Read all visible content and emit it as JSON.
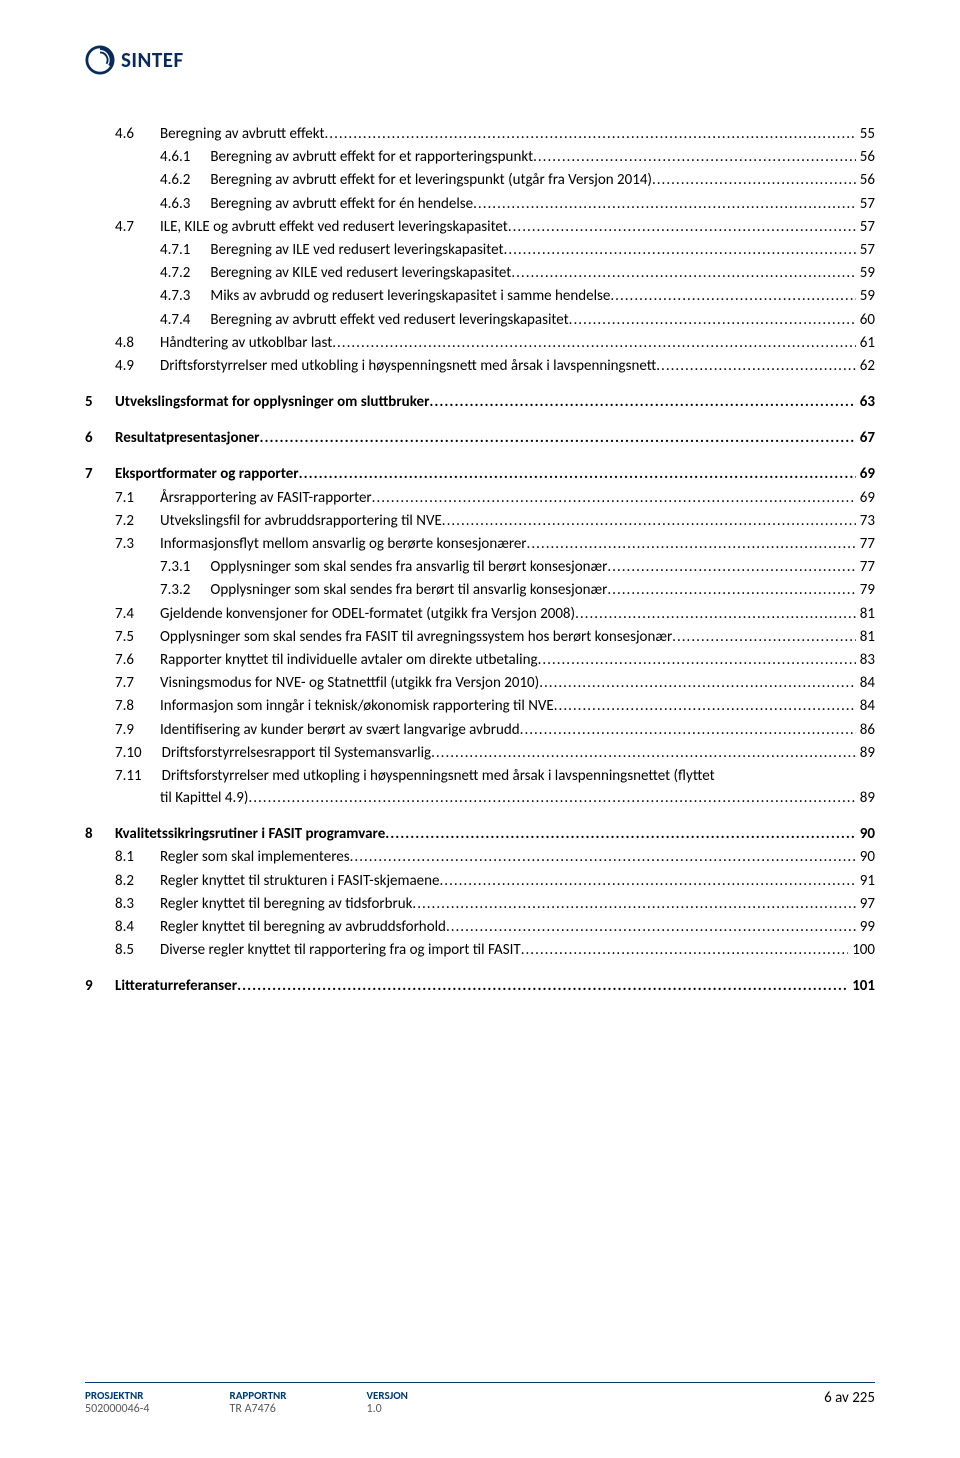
{
  "brand": {
    "name": "SINTEF"
  },
  "toc": [
    {
      "level": 2,
      "num": "4.6",
      "title": "Beregning av avbrutt effekt",
      "page": "55"
    },
    {
      "level": 3,
      "num": "4.6.1",
      "title": "Beregning av avbrutt effekt for et rapporteringspunkt",
      "page": "56"
    },
    {
      "level": 3,
      "num": "4.6.2",
      "title": "Beregning av avbrutt effekt for et leveringspunkt (utgår fra Versjon 2014)",
      "page": "56"
    },
    {
      "level": 3,
      "num": "4.6.3",
      "title": "Beregning av avbrutt effekt for én hendelse",
      "page": "57"
    },
    {
      "level": 2,
      "num": "4.7",
      "title": "ILE, KILE og avbrutt effekt ved redusert leveringskapasitet",
      "page": "57"
    },
    {
      "level": 3,
      "num": "4.7.1",
      "title": "Beregning av ILE ved redusert leveringskapasitet",
      "page": "57"
    },
    {
      "level": 3,
      "num": "4.7.2",
      "title": "Beregning av KILE ved redusert leveringskapasitet",
      "page": "59"
    },
    {
      "level": 3,
      "num": "4.7.3",
      "title": "Miks av avbrudd og redusert leveringskapasitet i samme hendelse",
      "page": "59"
    },
    {
      "level": 3,
      "num": "4.7.4",
      "title": "Beregning av avbrutt effekt ved redusert leveringskapasitet",
      "page": "60"
    },
    {
      "level": 2,
      "num": "4.8",
      "title": "Håndtering av utkoblbar last",
      "page": "61"
    },
    {
      "level": 2,
      "num": "4.9",
      "title": "Driftsforstyrrelser med utkobling i høyspenningsnett med årsak i lavspenningsnett",
      "page": "62"
    },
    {
      "level": 1,
      "num": "5",
      "title": "Utvekslingsformat for opplysninger om sluttbruker",
      "page": "63",
      "gap": true
    },
    {
      "level": 1,
      "num": "6",
      "title": "Resultatpresentasjoner",
      "page": "67",
      "gap": true
    },
    {
      "level": 1,
      "num": "7",
      "title": "Eksportformater og rapporter",
      "page": "69",
      "gap": true
    },
    {
      "level": 2,
      "num": "7.1",
      "title": "Årsrapportering av FASIT-rapporter",
      "page": "69"
    },
    {
      "level": 2,
      "num": "7.2",
      "title": "Utvekslingsfil for avbruddsrapportering til NVE",
      "page": "73"
    },
    {
      "level": 2,
      "num": "7.3",
      "title": "Informasjonsflyt mellom ansvarlig og berørte konsesjonærer",
      "page": "77"
    },
    {
      "level": 3,
      "num": "7.3.1",
      "title": "Opplysninger som skal sendes fra ansvarlig til berørt konsesjonær",
      "page": "77"
    },
    {
      "level": 3,
      "num": "7.3.2",
      "title": "Opplysninger som skal sendes fra berørt til ansvarlig konsesjonær",
      "page": "79"
    },
    {
      "level": 2,
      "num": "7.4",
      "title": "Gjeldende konvensjoner for ODEL-formatet (utgikk fra Versjon 2008)",
      "page": "81"
    },
    {
      "level": 2,
      "num": "7.5",
      "title": "Opplysninger som skal sendes fra FASIT til avregningssystem hos berørt konsesjonær",
      "page": "81"
    },
    {
      "level": 2,
      "num": "7.6",
      "title": "Rapporter knyttet til individuelle avtaler om direkte utbetaling",
      "page": "83"
    },
    {
      "level": 2,
      "num": "7.7",
      "title": "Visningsmodus for NVE- og Statnettfil (utgikk fra Versjon 2010)",
      "page": "84"
    },
    {
      "level": 2,
      "num": "7.8",
      "title": "Informasjon som inngår i teknisk/økonomisk rapportering til NVE",
      "page": "84"
    },
    {
      "level": 2,
      "num": "7.9",
      "title": "Identifisering av kunder berørt av svært langvarige avbrudd",
      "page": "86"
    },
    {
      "level": 2,
      "num": "7.10",
      "title": "Driftsforstyrrelsesrapport til Systemansvarlig",
      "page": "89"
    },
    {
      "level": 2,
      "num": "7.11",
      "title": "Driftsforstyrrelser med utkopling i høyspenningsnett med årsak i lavspenningsnettet (flyttet",
      "page": "",
      "noleader": true
    },
    {
      "level": 0,
      "wrap": true,
      "title": "til Kapittel 4.9)",
      "page": "89"
    },
    {
      "level": 1,
      "num": "8",
      "title": "Kvalitetssikringsrutiner i FASIT programvare",
      "page": "90",
      "gap": true
    },
    {
      "level": 2,
      "num": "8.1",
      "title": "Regler som skal implementeres",
      "page": "90"
    },
    {
      "level": 2,
      "num": "8.2",
      "title": "Regler knyttet til strukturen i FASIT-skjemaene",
      "page": "91"
    },
    {
      "level": 2,
      "num": "8.3",
      "title": "Regler knyttet til beregning av tidsforbruk",
      "page": "97"
    },
    {
      "level": 2,
      "num": "8.4",
      "title": "Regler knyttet til beregning av avbruddsforhold",
      "page": "99"
    },
    {
      "level": 2,
      "num": "8.5",
      "title": "Diverse regler knyttet til rapportering fra og import til FASIT",
      "page": "100"
    },
    {
      "level": 1,
      "num": "9",
      "title": "Litteraturreferanser",
      "page": "101",
      "gap": true
    }
  ],
  "footer": {
    "col1_label": "PROSJEKTNR",
    "col1_value": "502000046-4",
    "col2_label": "RAPPORTNR",
    "col2_value": "TR A7476",
    "col3_label": "VERSJON",
    "col3_value": "1.0",
    "page_text": "6 av 225"
  },
  "colors": {
    "brand_blue": "#0a2b5a",
    "footer_blue": "#003c71",
    "footer_grey": "#595959",
    "text": "#000000",
    "background": "#ffffff"
  }
}
